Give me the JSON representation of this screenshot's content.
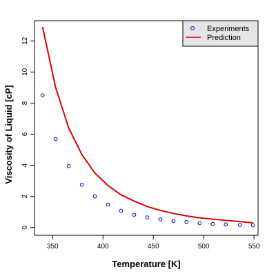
{
  "chart_data": {
    "type": "scatter",
    "xlabel": "Temperature [K]",
    "ylabel": "Viscosity of Liquid [cP]",
    "xlim": [
      332,
      554
    ],
    "ylim": [
      -0.5,
      13.3
    ],
    "x_ticks": [
      350,
      400,
      450,
      500,
      550
    ],
    "y_ticks": [
      0,
      2,
      4,
      6,
      8,
      10,
      12
    ],
    "grid": false,
    "legend_position": "top-right",
    "series": [
      {
        "name": "Experiments",
        "kind": "points",
        "marker": "open-circle",
        "color": "#0000cc",
        "x": [
          340,
          353,
          366,
          379,
          392,
          405,
          418,
          431,
          444,
          457,
          470,
          483,
          496,
          509,
          522,
          536,
          549
        ],
        "y": [
          8.5,
          5.7,
          3.95,
          2.75,
          2.0,
          1.48,
          1.08,
          0.82,
          0.65,
          0.52,
          0.42,
          0.35,
          0.28,
          0.23,
          0.2,
          0.17,
          0.14
        ]
      },
      {
        "name": "Prediction",
        "kind": "line",
        "color": "#dd0000",
        "x": [
          340,
          353,
          366,
          379,
          392,
          405,
          418,
          431,
          444,
          457,
          470,
          483,
          496,
          509,
          522,
          536,
          549
        ],
        "y": [
          12.9,
          9.0,
          6.4,
          4.7,
          3.5,
          2.7,
          2.1,
          1.7,
          1.35,
          1.1,
          0.9,
          0.75,
          0.62,
          0.54,
          0.46,
          0.38,
          0.3
        ]
      }
    ]
  }
}
